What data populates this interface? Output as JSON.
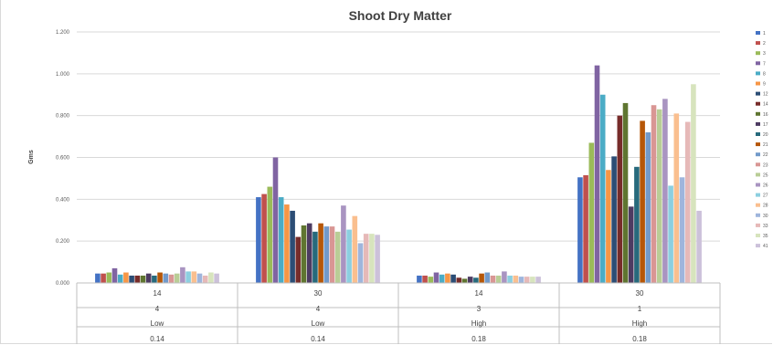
{
  "chart_data": {
    "type": "bar",
    "title": "Shoot Dry Matter",
    "ylabel": "Gms",
    "xlabel": "",
    "ylim": [
      0,
      1.2
    ],
    "yticks": [
      "0.000",
      "0.200",
      "0.400",
      "0.600",
      "0.800",
      "1.000",
      "1.200"
    ],
    "ytick_values": [
      0,
      0.2,
      0.4,
      0.6,
      0.8,
      1.0,
      1.2
    ],
    "grid": true,
    "legend_position": "right",
    "categories": [
      {
        "levels": [
          "14",
          "4",
          "Low",
          "0.14"
        ]
      },
      {
        "levels": [
          "30",
          "4",
          "Low",
          "0.14"
        ]
      },
      {
        "levels": [
          "14",
          "3",
          "High",
          "0.18"
        ]
      },
      {
        "levels": [
          "30",
          "1",
          "High",
          "0.18"
        ]
      }
    ],
    "series": [
      {
        "name": "1",
        "color": "#4472c4",
        "values": [
          0.045,
          0.41,
          0.035,
          0.505
        ]
      },
      {
        "name": "2",
        "color": "#c0504d",
        "values": [
          0.045,
          0.425,
          0.035,
          0.515
        ]
      },
      {
        "name": "3",
        "color": "#9bbb59",
        "values": [
          0.05,
          0.46,
          0.03,
          0.67
        ]
      },
      {
        "name": "7",
        "color": "#8064a2",
        "values": [
          0.07,
          0.6,
          0.05,
          1.04
        ]
      },
      {
        "name": "8",
        "color": "#4bacc6",
        "values": [
          0.04,
          0.41,
          0.04,
          0.9
        ]
      },
      {
        "name": "9",
        "color": "#f79646",
        "values": [
          0.05,
          0.375,
          0.045,
          0.54
        ]
      },
      {
        "name": "12",
        "color": "#2c4d75",
        "values": [
          0.035,
          0.345,
          0.04,
          0.605
        ]
      },
      {
        "name": "14",
        "color": "#772c2a",
        "values": [
          0.035,
          0.22,
          0.025,
          0.8
        ]
      },
      {
        "name": "16",
        "color": "#5f7530",
        "values": [
          0.035,
          0.275,
          0.02,
          0.86
        ]
      },
      {
        "name": "17",
        "color": "#4d3b62",
        "values": [
          0.045,
          0.285,
          0.03,
          0.365
        ]
      },
      {
        "name": "20",
        "color": "#276a7c",
        "values": [
          0.035,
          0.245,
          0.025,
          0.555
        ]
      },
      {
        "name": "21",
        "color": "#b65708",
        "values": [
          0.05,
          0.285,
          0.045,
          0.775
        ]
      },
      {
        "name": "22",
        "color": "#729aca",
        "values": [
          0.045,
          0.27,
          0.05,
          0.72
        ]
      },
      {
        "name": "23",
        "color": "#d99694",
        "values": [
          0.04,
          0.27,
          0.035,
          0.85
        ]
      },
      {
        "name": "25",
        "color": "#b9cd96",
        "values": [
          0.045,
          0.245,
          0.035,
          0.83
        ]
      },
      {
        "name": "26",
        "color": "#a994c1",
        "values": [
          0.075,
          0.37,
          0.055,
          0.88
        ]
      },
      {
        "name": "27",
        "color": "#8ccfe0",
        "values": [
          0.055,
          0.255,
          0.035,
          0.465
        ]
      },
      {
        "name": "28",
        "color": "#fabf8f",
        "values": [
          0.055,
          0.32,
          0.035,
          0.81
        ]
      },
      {
        "name": "30",
        "color": "#9fb5dc",
        "values": [
          0.045,
          0.19,
          0.03,
          0.505
        ]
      },
      {
        "name": "33",
        "color": "#e6b9b8",
        "values": [
          0.035,
          0.235,
          0.03,
          0.77
        ]
      },
      {
        "name": "35",
        "color": "#d7e4bd",
        "values": [
          0.05,
          0.235,
          0.03,
          0.95
        ]
      },
      {
        "name": "41",
        "color": "#ccc1da",
        "values": [
          0.045,
          0.23,
          0.03,
          0.345
        ]
      }
    ]
  }
}
